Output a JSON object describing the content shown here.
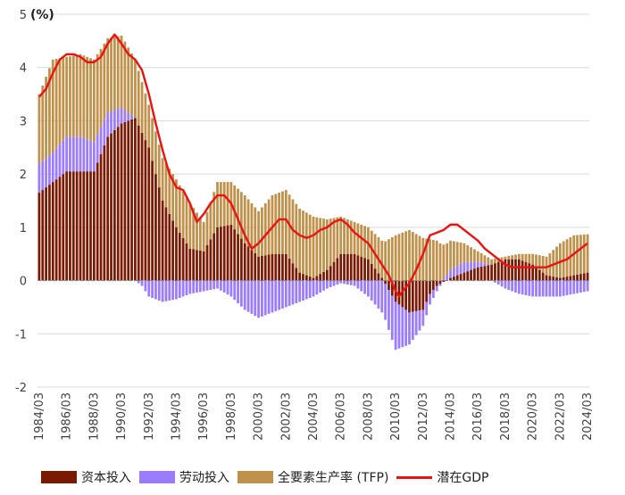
{
  "colors": {
    "capital": "#7B1A02",
    "labor": "#9B7BFF",
    "tfp": "#C0914B",
    "gdp": "#EE1111",
    "grid": "#D9D9D9"
  },
  "chart_data": {
    "type": "stacked bar + line",
    "unit_label": "(%)",
    "ylim": [
      -2,
      5
    ],
    "yticks": [
      -2,
      -1,
      0,
      1,
      2,
      3,
      4,
      5
    ],
    "x_tick_labels": [
      "1984/03",
      "1986/03",
      "1988/03",
      "1990/03",
      "1992/03",
      "1994/03",
      "1996/03",
      "1998/03",
      "2000/03",
      "2002/03",
      "2004/03",
      "2006/03",
      "2008/03",
      "2010/03",
      "2012/03",
      "2014/03",
      "2016/03",
      "2018/03",
      "2020/03",
      "2022/03",
      "2024/03"
    ],
    "year_start": 1984,
    "year_end": 2024,
    "quarters_per_year": 4,
    "series": [
      {
        "name": "资本投入",
        "anchors": [
          [
            1984,
            1.65
          ],
          [
            1985,
            1.85
          ],
          [
            1986,
            2.05
          ],
          [
            1987,
            2.05
          ],
          [
            1988,
            2.05
          ],
          [
            1989,
            2.7
          ],
          [
            1990,
            2.95
          ],
          [
            1991,
            3.05
          ],
          [
            1992,
            2.5
          ],
          [
            1993,
            1.5
          ],
          [
            1994,
            1.0
          ],
          [
            1995,
            0.6
          ],
          [
            1996,
            0.55
          ],
          [
            1997,
            1.0
          ],
          [
            1998,
            1.05
          ],
          [
            1999,
            0.7
          ],
          [
            2000,
            0.45
          ],
          [
            2001,
            0.5
          ],
          [
            2002,
            0.5
          ],
          [
            2003,
            0.15
          ],
          [
            2004,
            0.05
          ],
          [
            2005,
            0.2
          ],
          [
            2006,
            0.5
          ],
          [
            2007,
            0.5
          ],
          [
            2008,
            0.4
          ],
          [
            2009,
            0.05
          ],
          [
            2010,
            -0.4
          ],
          [
            2011,
            -0.6
          ],
          [
            2012,
            -0.55
          ],
          [
            2012.5,
            -0.25
          ],
          [
            2013,
            -0.1
          ],
          [
            2014,
            0.05
          ],
          [
            2015,
            0.15
          ],
          [
            2016,
            0.25
          ],
          [
            2017,
            0.3
          ],
          [
            2018,
            0.4
          ],
          [
            2019,
            0.4
          ],
          [
            2020,
            0.3
          ],
          [
            2021,
            0.1
          ],
          [
            2022,
            0.05
          ],
          [
            2023,
            0.1
          ],
          [
            2024,
            0.15
          ]
        ]
      },
      {
        "name": "劳动投入",
        "anchors": [
          [
            1984,
            0.55
          ],
          [
            1985,
            0.55
          ],
          [
            1986,
            0.65
          ],
          [
            1987,
            0.65
          ],
          [
            1988,
            0.55
          ],
          [
            1989,
            0.45
          ],
          [
            1990,
            0.3
          ],
          [
            1991,
            0.0
          ],
          [
            1991.5,
            -0.1
          ],
          [
            1992,
            -0.3
          ],
          [
            1993,
            -0.4
          ],
          [
            1994,
            -0.35
          ],
          [
            1995,
            -0.25
          ],
          [
            1996,
            -0.2
          ],
          [
            1997,
            -0.15
          ],
          [
            1998,
            -0.3
          ],
          [
            1999,
            -0.55
          ],
          [
            2000,
            -0.7
          ],
          [
            2001,
            -0.6
          ],
          [
            2002,
            -0.5
          ],
          [
            2003,
            -0.4
          ],
          [
            2004,
            -0.3
          ],
          [
            2005,
            -0.15
          ],
          [
            2006,
            -0.05
          ],
          [
            2007,
            -0.1
          ],
          [
            2008,
            -0.3
          ],
          [
            2009,
            -0.6
          ],
          [
            2010,
            -0.9
          ],
          [
            2011,
            -0.6
          ],
          [
            2012,
            -0.3
          ],
          [
            2013,
            -0.1
          ],
          [
            2014,
            0.15
          ],
          [
            2015,
            0.2
          ],
          [
            2016,
            0.1
          ],
          [
            2017,
            0.0
          ],
          [
            2018,
            -0.15
          ],
          [
            2019,
            -0.25
          ],
          [
            2020,
            -0.3
          ],
          [
            2021,
            -0.3
          ],
          [
            2022,
            -0.3
          ],
          [
            2023,
            -0.25
          ],
          [
            2024,
            -0.2
          ]
        ]
      },
      {
        "name": "全要素生产率 (TFP)",
        "anchors": [
          [
            1984,
            1.3
          ],
          [
            1985,
            1.75
          ],
          [
            1986,
            1.5
          ],
          [
            1987,
            1.55
          ],
          [
            1988,
            1.55
          ],
          [
            1989,
            1.4
          ],
          [
            1990,
            1.35
          ],
          [
            1991,
            1.1
          ],
          [
            1992,
            0.8
          ],
          [
            1993,
            0.8
          ],
          [
            1994,
            0.9
          ],
          [
            1995,
            0.85
          ],
          [
            1996,
            0.55
          ],
          [
            1997,
            0.85
          ],
          [
            1998,
            0.8
          ],
          [
            1999,
            0.9
          ],
          [
            2000,
            0.85
          ],
          [
            2001,
            1.1
          ],
          [
            2002,
            1.2
          ],
          [
            2003,
            1.2
          ],
          [
            2004,
            1.15
          ],
          [
            2005,
            0.95
          ],
          [
            2006,
            0.7
          ],
          [
            2007,
            0.6
          ],
          [
            2008,
            0.6
          ],
          [
            2009,
            0.7
          ],
          [
            2010,
            0.85
          ],
          [
            2011,
            0.95
          ],
          [
            2012,
            0.8
          ],
          [
            2013,
            0.75
          ],
          [
            2014,
            0.55
          ],
          [
            2015,
            0.35
          ],
          [
            2016,
            0.2
          ],
          [
            2017,
            0.1
          ],
          [
            2018,
            0.05
          ],
          [
            2019,
            0.1
          ],
          [
            2020,
            0.2
          ],
          [
            2021,
            0.35
          ],
          [
            2022,
            0.65
          ],
          [
            2023,
            0.75
          ],
          [
            2024,
            0.72
          ]
        ]
      },
      {
        "name": "潜在GDP",
        "anchors": [
          [
            1984,
            3.45
          ],
          [
            1984.5,
            3.6
          ],
          [
            1985,
            3.9
          ],
          [
            1985.5,
            4.15
          ],
          [
            1986,
            4.25
          ],
          [
            1986.5,
            4.25
          ],
          [
            1987,
            4.2
          ],
          [
            1987.5,
            4.1
          ],
          [
            1988,
            4.1
          ],
          [
            1988.5,
            4.2
          ],
          [
            1989,
            4.45
          ],
          [
            1989.5,
            4.62
          ],
          [
            1990,
            4.45
          ],
          [
            1990.5,
            4.25
          ],
          [
            1991,
            4.15
          ],
          [
            1991.5,
            3.95
          ],
          [
            1992,
            3.5
          ],
          [
            1992.5,
            2.95
          ],
          [
            1993,
            2.45
          ],
          [
            1993.5,
            2.0
          ],
          [
            1994,
            1.75
          ],
          [
            1994.5,
            1.7
          ],
          [
            1995,
            1.45
          ],
          [
            1995.5,
            1.1
          ],
          [
            1996,
            1.25
          ],
          [
            1996.5,
            1.45
          ],
          [
            1997,
            1.6
          ],
          [
            1997.5,
            1.6
          ],
          [
            1998,
            1.45
          ],
          [
            1998.5,
            1.15
          ],
          [
            1999,
            0.85
          ],
          [
            1999.5,
            0.6
          ],
          [
            2000,
            0.7
          ],
          [
            2000.5,
            0.85
          ],
          [
            2001,
            1.0
          ],
          [
            2001.5,
            1.15
          ],
          [
            2002,
            1.15
          ],
          [
            2002.5,
            0.95
          ],
          [
            2003,
            0.85
          ],
          [
            2003.5,
            0.8
          ],
          [
            2004,
            0.85
          ],
          [
            2004.5,
            0.95
          ],
          [
            2005,
            1.0
          ],
          [
            2005.5,
            1.1
          ],
          [
            2006,
            1.15
          ],
          [
            2006.5,
            1.05
          ],
          [
            2007,
            0.9
          ],
          [
            2007.5,
            0.8
          ],
          [
            2008,
            0.7
          ],
          [
            2008.5,
            0.5
          ],
          [
            2009,
            0.3
          ],
          [
            2009.5,
            0.1
          ],
          [
            2010,
            -0.2
          ],
          [
            2010.25,
            -0.3
          ],
          [
            2010.5,
            -0.2
          ],
          [
            2011,
            -0.05
          ],
          [
            2011.5,
            0.2
          ],
          [
            2012,
            0.5
          ],
          [
            2012.5,
            0.85
          ],
          [
            2013,
            0.9
          ],
          [
            2013.5,
            0.95
          ],
          [
            2014,
            1.05
          ],
          [
            2014.5,
            1.05
          ],
          [
            2015,
            0.95
          ],
          [
            2015.5,
            0.85
          ],
          [
            2016,
            0.75
          ],
          [
            2016.5,
            0.6
          ],
          [
            2017,
            0.5
          ],
          [
            2017.5,
            0.4
          ],
          [
            2018,
            0.3
          ],
          [
            2018.5,
            0.25
          ],
          [
            2019,
            0.25
          ],
          [
            2019.5,
            0.25
          ],
          [
            2020,
            0.25
          ],
          [
            2020.5,
            0.25
          ],
          [
            2021,
            0.25
          ],
          [
            2021.5,
            0.3
          ],
          [
            2022,
            0.35
          ],
          [
            2022.5,
            0.4
          ],
          [
            2023,
            0.5
          ],
          [
            2023.5,
            0.6
          ],
          [
            2024,
            0.7
          ]
        ]
      }
    ]
  }
}
